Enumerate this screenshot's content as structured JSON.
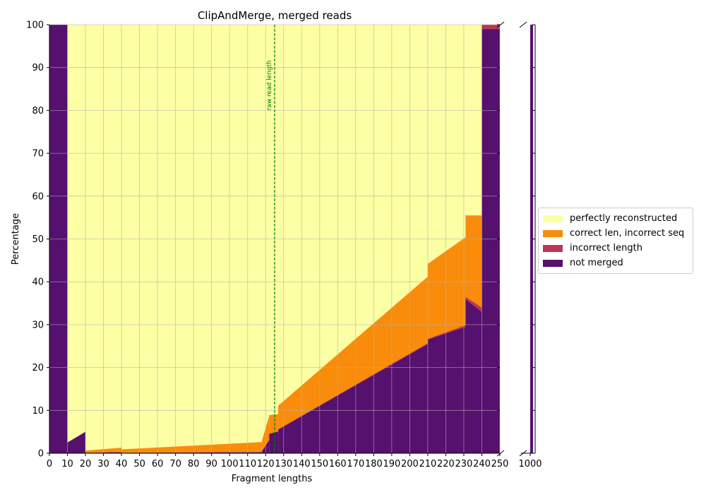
{
  "chart_data": {
    "type": "stacked-area",
    "title": "ClipAndMerge, merged reads",
    "xlabel": "Fragment lengths",
    "ylabel": "Percentage",
    "xlim": [
      0,
      250
    ],
    "ylim": [
      0,
      100
    ],
    "x_ticks": [
      0,
      10,
      20,
      30,
      40,
      50,
      60,
      70,
      80,
      90,
      100,
      110,
      120,
      130,
      140,
      150,
      160,
      170,
      180,
      190,
      200,
      210,
      220,
      230,
      240,
      250
    ],
    "y_ticks": [
      0,
      10,
      20,
      30,
      40,
      50,
      60,
      70,
      80,
      90,
      100
    ],
    "grid": true,
    "legend_position": "right",
    "broken_axis": {
      "tick_label": "1000",
      "values": {
        "not_merged": 100,
        "incorrect_length": 0,
        "correct_len_incorrect_seq": 0,
        "perfectly_reconstructed": 0
      }
    },
    "vertical_marker": {
      "x": 125,
      "label": "raw read length",
      "color": "#008000"
    },
    "series": [
      {
        "key": "not_merged",
        "name": "not merged",
        "color": "#56106e"
      },
      {
        "key": "incorrect_length",
        "name": "incorrect length",
        "color": "#bb3754"
      },
      {
        "key": "correct_len_incorrect_seq",
        "name": "correct len, incorrect seq",
        "color": "#f98c0a"
      },
      {
        "key": "perfectly_reconstructed",
        "name": "perfectly reconstructed",
        "color": "#fcffa4"
      }
    ],
    "segments": [
      {
        "x": [
          0,
          10
        ],
        "not_merged": [
          100,
          100
        ],
        "incorrect_length": [
          0,
          0
        ],
        "correct_len_incorrect_seq": [
          0,
          0
        ]
      },
      {
        "x": [
          10,
          20
        ],
        "not_merged": [
          2.5,
          5
        ],
        "incorrect_length": [
          0,
          0
        ],
        "correct_len_incorrect_seq": [
          0,
          0
        ]
      },
      {
        "x": [
          20,
          40
        ],
        "not_merged": [
          0.1,
          0.2
        ],
        "incorrect_length": [
          0,
          0.1
        ],
        "correct_len_incorrect_seq": [
          0.5,
          1.0
        ]
      },
      {
        "x": [
          40,
          118
        ],
        "not_merged": [
          0.1,
          0.2
        ],
        "incorrect_length": [
          0,
          0.1
        ],
        "correct_len_incorrect_seq": [
          0.8,
          2.3
        ]
      },
      {
        "x": [
          118,
          122
        ],
        "not_merged": [
          0.5,
          3.0
        ],
        "incorrect_length": [
          0,
          0.2
        ],
        "correct_len_incorrect_seq": [
          2.5,
          5.5
        ]
      },
      {
        "x": [
          122,
          127
        ],
        "not_merged": [
          4.5,
          5.0
        ],
        "incorrect_length": [
          0.1,
          0.1
        ],
        "correct_len_incorrect_seq": [
          4.3,
          4.0
        ]
      },
      {
        "x": [
          127,
          210
        ],
        "not_merged": [
          5.5,
          25.5
        ],
        "incorrect_length": [
          0.1,
          0.2
        ],
        "correct_len_incorrect_seq": [
          5.5,
          15.5
        ]
      },
      {
        "x": [
          210,
          231
        ],
        "not_merged": [
          26.5,
          29.5
        ],
        "incorrect_length": [
          0.2,
          0.4
        ],
        "correct_len_incorrect_seq": [
          17.5,
          20.5
        ]
      },
      {
        "x": [
          231,
          240
        ],
        "not_merged": [
          36,
          33
        ],
        "incorrect_length": [
          0.5,
          1.0
        ],
        "correct_len_incorrect_seq": [
          19,
          21.5
        ]
      },
      {
        "x": [
          240,
          250
        ],
        "not_merged": [
          99,
          99
        ],
        "incorrect_length": [
          1,
          1
        ],
        "correct_len_incorrect_seq": [
          0,
          0
        ]
      }
    ]
  }
}
